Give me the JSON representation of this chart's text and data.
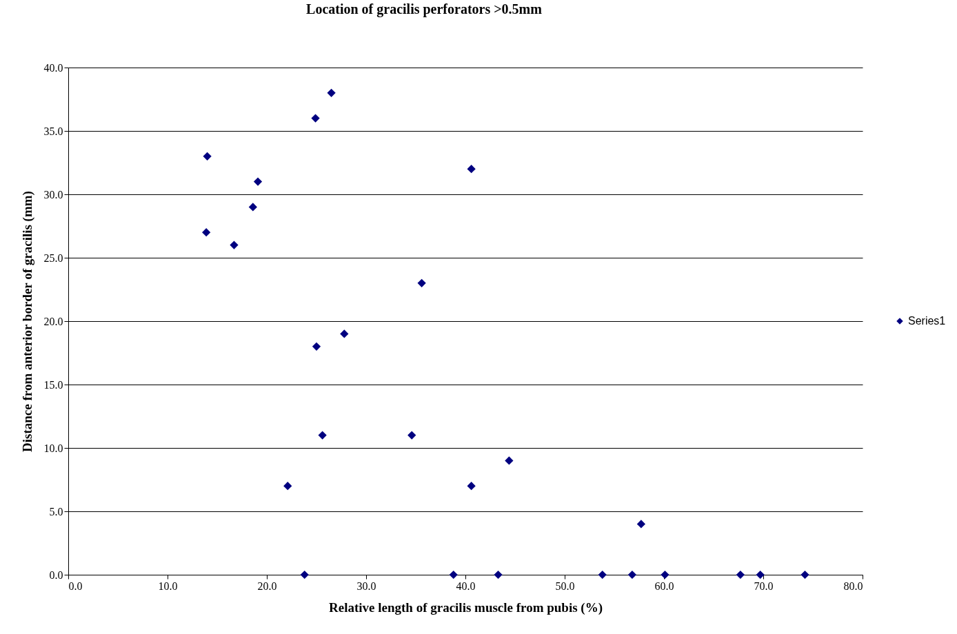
{
  "chart_data": {
    "type": "scatter",
    "title": "Location of gracilis perforators >0.5mm",
    "xlabel": "Relative length of gracilis muscle from pubis (%)",
    "ylabel": "Distance from anterior border of gracilis (mm)",
    "x": [
      14.0,
      13.9,
      16.7,
      18.6,
      19.1,
      24.9,
      26.5,
      40.6,
      35.6,
      25.0,
      27.8,
      25.6,
      34.6,
      22.1,
      40.6,
      44.4,
      57.7,
      23.8,
      38.8,
      43.3,
      53.8,
      56.8,
      60.1,
      67.7,
      69.7,
      74.2
    ],
    "series": [
      {
        "name": "Series1",
        "color": "#000080",
        "values": [
          33,
          27,
          26,
          29,
          31,
          36,
          38,
          32,
          23,
          18,
          19,
          11,
          11,
          7,
          7,
          9,
          4,
          0,
          0,
          0,
          0,
          0,
          0,
          0,
          0,
          0
        ]
      }
    ],
    "xlim": [
      0,
      80
    ],
    "ylim": [
      0,
      40
    ],
    "xticks": [
      {
        "value": 0,
        "label": "0.0"
      },
      {
        "value": 10,
        "label": "10.0"
      },
      {
        "value": 20,
        "label": "20.0"
      },
      {
        "value": 30,
        "label": "30.0"
      },
      {
        "value": 40,
        "label": "40.0"
      },
      {
        "value": 50,
        "label": "50.0"
      },
      {
        "value": 60,
        "label": "60.0"
      },
      {
        "value": 70,
        "label": "70.0"
      },
      {
        "value": 80,
        "label": "80.0"
      }
    ],
    "yticks": [
      {
        "value": 0,
        "label": "0.0"
      },
      {
        "value": 5,
        "label": "5.0"
      },
      {
        "value": 10,
        "label": "10.0"
      },
      {
        "value": 15,
        "label": "15.0"
      },
      {
        "value": 20,
        "label": "20.0"
      },
      {
        "value": 25,
        "label": "25.0"
      },
      {
        "value": 30,
        "label": "30.0"
      },
      {
        "value": 35,
        "label": "35.0"
      },
      {
        "value": 40,
        "label": "40.0"
      }
    ],
    "grid": "y",
    "legend": "right",
    "marker": "diamond"
  }
}
